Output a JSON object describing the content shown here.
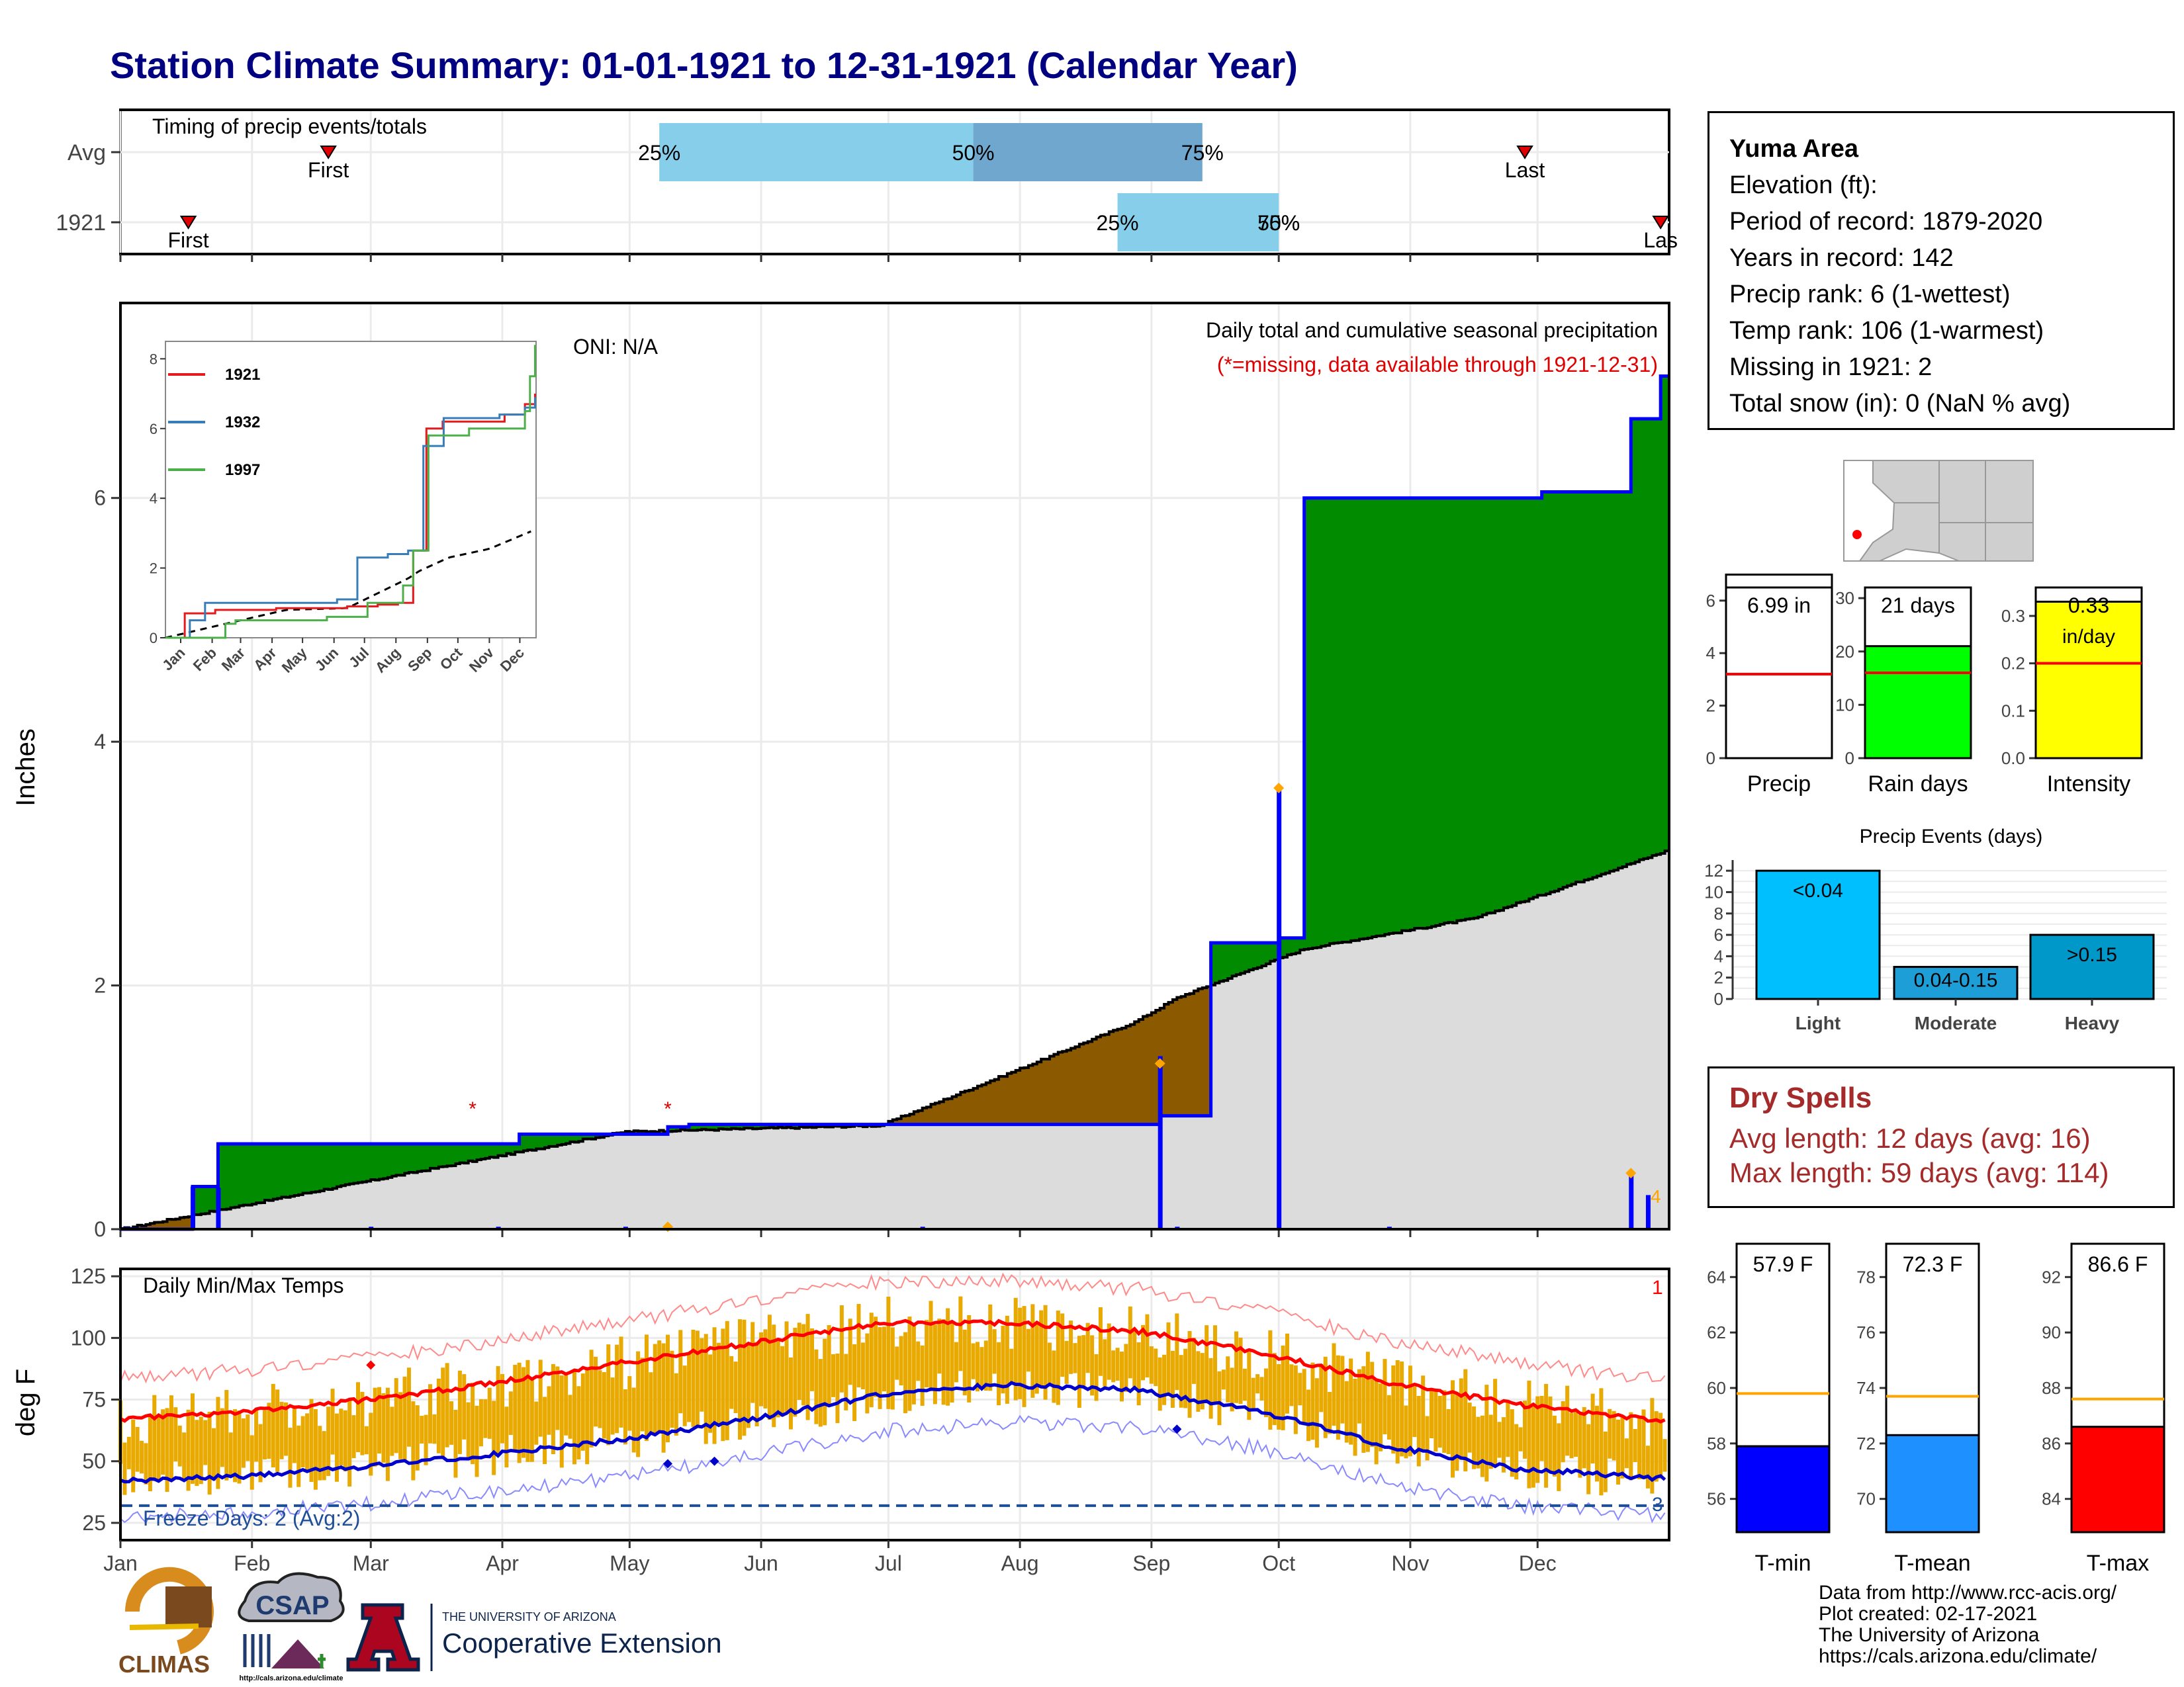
{
  "title": "Station Climate Summary: 01-01-1921 to 12-31-1921 (Calendar Year)",
  "months": [
    "Jan",
    "Feb",
    "Mar",
    "Apr",
    "May",
    "Jun",
    "Jul",
    "Aug",
    "Sep",
    "Oct",
    "Nov",
    "Dec"
  ],
  "timing": {
    "label": "Timing of precip events/totals",
    "rows": [
      "Avg",
      "1921"
    ],
    "first_label": "First",
    "last_label": "Last",
    "last_label_clipped": "Las",
    "pct_labels": [
      "25%",
      "50%",
      "75%"
    ],
    "pct_75_overlap_label": "75%",
    "avg": {
      "first_doy": 50,
      "q25_doy": 128,
      "q50_doy": 202,
      "q75_doy": 256,
      "last_doy": 332
    },
    "y1921": {
      "first_doy": 17,
      "q25_doy": 236,
      "q50_doy": 274,
      "q75_doy": 274,
      "last_doy": 364
    },
    "colors": {
      "light": "#87ceeb",
      "dark": "#6fa7cf",
      "marker": "#e00000"
    }
  },
  "precip_panel": {
    "title": "Daily total and cumulative seasonal precipitation",
    "subtitle": "(*=missing, data available through 1921-12-31)",
    "oni": "ONI: N/A",
    "ylabel": "Inches",
    "yticks": [
      "0",
      "2",
      "4",
      "6"
    ],
    "ylim": [
      0,
      7.6
    ],
    "missing_marker": "4",
    "colors": {
      "above": "#008b00",
      "below": "#8b5a00",
      "avg_fill": "#dcdcdc",
      "obs_line": "#0000ff",
      "daily": "#0000ff",
      "missing": "#e00000",
      "diamond": "#ffa500"
    }
  },
  "inset": {
    "yticks": [
      "0",
      "2",
      "4",
      "6",
      "8"
    ],
    "xticks": [
      "Jan",
      "Feb",
      "Mar",
      "Apr",
      "May",
      "Jun",
      "Jul",
      "Aug",
      "Sep",
      "Oct",
      "Nov",
      "Dec"
    ],
    "legend": [
      {
        "name": "1921",
        "color": "#e41a1c"
      },
      {
        "name": "1932",
        "color": "#377eb8"
      },
      {
        "name": "1997",
        "color": "#4daf4a"
      }
    ]
  },
  "temp_panel": {
    "title": "Daily Min/Max Temps",
    "ylabel": "deg F",
    "yticks": [
      "25",
      "50",
      "75",
      "100",
      "125"
    ],
    "ylim": [
      18,
      128
    ],
    "freeze": "Freeze Days: 2 (Avg:2)",
    "record_high_count": "1",
    "record_low_count": "3",
    "colors": {
      "bars": "#e8a900",
      "tmax": "#ff0000",
      "tmin": "#0000cd",
      "freeze": "#1f4e99"
    }
  },
  "station": {
    "name": "Yuma Area",
    "lines": [
      "Elevation (ft):",
      "Period of record: 1879-2020",
      "Years in record: 142",
      "Precip rank: 6 (1-wettest)",
      "Temp rank: 106 (1-warmest)",
      "Missing in 1921: 2",
      "Total snow (in): 0 (NaN % avg)"
    ]
  },
  "summary_bars": [
    {
      "label": "Precip",
      "value_label": "6.99 in",
      "value": 6.99,
      "avg": 3.2,
      "yticks": [
        "0",
        "2",
        "4",
        "6"
      ],
      "ymax": 6.5,
      "tickvals": [
        0,
        2,
        4,
        6
      ],
      "color": "#ffffff"
    },
    {
      "label": "Rain days",
      "value_label": "21 days",
      "value": 21,
      "avg": 16,
      "yticks": [
        "0",
        "10",
        "20",
        "30"
      ],
      "ymax": 32,
      "tickvals": [
        0,
        10,
        20,
        30
      ],
      "color": "#00ff00"
    },
    {
      "label": "Intensity",
      "value_label": "0.33",
      "value_label2": "in/day",
      "value": 0.33,
      "avg": 0.2,
      "yticks": [
        "0.0",
        "0.1",
        "0.2",
        "0.3"
      ],
      "ymax": 0.36,
      "tickvals": [
        0,
        0.1,
        0.2,
        0.3
      ],
      "color": "#ffff00"
    }
  ],
  "events": {
    "title": "Precip Events (days)",
    "categories": [
      "Light",
      "Moderate",
      "Heavy"
    ],
    "bar_labels": [
      "<0.04",
      "0.04-0.15",
      ">0.15"
    ],
    "values": [
      12,
      3,
      6
    ],
    "yticks": [
      "0",
      "2",
      "4",
      "6",
      "8",
      "10",
      "12"
    ],
    "colors": [
      "#00bfff",
      "#1e9ed6",
      "#0097c9"
    ]
  },
  "dry_spells": {
    "title": "Dry Spells",
    "avg_length": "Avg length: 12 days (avg: 16)",
    "max_length": "Max length: 59 days (avg: 114)"
  },
  "temp_bars": [
    {
      "label": "T-min",
      "value_label": "57.9 F",
      "value": 57.9,
      "avg": 59.8,
      "yticks": [
        "56",
        "58",
        "60",
        "62",
        "64"
      ],
      "tickvals": [
        56,
        58,
        60,
        62,
        64
      ],
      "ymin": 54.8,
      "ymax": 65.2,
      "color": "#0000ff"
    },
    {
      "label": "T-mean",
      "value_label": "72.3 F",
      "value": 72.3,
      "avg": 73.7,
      "yticks": [
        "70",
        "72",
        "74",
        "76",
        "78"
      ],
      "tickvals": [
        70,
        72,
        74,
        76,
        78
      ],
      "ymin": 68.8,
      "ymax": 79.2,
      "color": "#1e90ff"
    },
    {
      "label": "T-max",
      "value_label": "86.6 F",
      "value": 86.6,
      "avg": 87.6,
      "yticks": [
        "84",
        "86",
        "88",
        "90",
        "92"
      ],
      "tickvals": [
        84,
        86,
        88,
        90,
        92
      ],
      "ymin": 82.8,
      "ymax": 93.2,
      "color": "#ff0000"
    }
  ],
  "credits": [
    "Data from http://www.rcc-acis.org/",
    "Plot created: 02-17-2021",
    "The University of Arizona",
    "https://cals.arizona.edu/climate/"
  ],
  "logos": {
    "climas": "CLIMAS",
    "csap": "CSAP",
    "csap_url": "http://cals.arizona.edu/climate",
    "ua_line1": "THE UNIVERSITY OF ARIZONA",
    "ua_line2": "Cooperative Extension",
    "ua_letter": "A"
  },
  "chart_data": [
    {
      "type": "area",
      "title": "Daily total and cumulative seasonal precipitation",
      "ylabel": "Inches",
      "ylim": [
        0,
        7.6
      ],
      "series": [
        {
          "name": "1921 cumulative",
          "x_doy": [
            1,
            18,
            24,
            84,
            95,
            130,
            135,
            175,
            246,
            258,
            274,
            280,
            336,
            357,
            364
          ],
          "values": [
            0,
            0.35,
            0.7,
            0.7,
            0.78,
            0.84,
            0.86,
            0.86,
            0.93,
            2.35,
            2.39,
            6.0,
            6.05,
            6.65,
            7.0
          ]
        },
        {
          "name": "average cumulative",
          "x_doy": [
            1,
            60,
            120,
            180,
            240,
            250,
            280,
            320,
            365
          ],
          "values": [
            0,
            0.4,
            0.8,
            0.85,
            1.7,
            1.9,
            2.3,
            2.55,
            3.1
          ]
        }
      ],
      "daily_precip": [
        {
          "doy": 18,
          "inches": 0.35
        },
        {
          "doy": 24,
          "inches": 0.34
        },
        {
          "doy": 246,
          "inches": 1.42
        },
        {
          "doy": 274,
          "inches": 3.62
        },
        {
          "doy": 357,
          "inches": 0.45
        },
        {
          "doy": 361,
          "inches": 0.28
        }
      ]
    },
    {
      "type": "line",
      "title": "",
      "xlabel": "",
      "ylabel": "",
      "ylim": [
        0,
        8.5
      ],
      "series": [
        {
          "name": "1921",
          "x_doy": [
            1,
            20,
            50,
            110,
            180,
            210,
            230,
            245,
            258,
            274,
            335,
            355,
            365
          ],
          "values": [
            0,
            0.7,
            0.8,
            0.85,
            0.9,
            0.95,
            1.0,
            2.5,
            6.0,
            6.2,
            6.4,
            6.7,
            7.0
          ]
        },
        {
          "name": "1932",
          "x_doy": [
            1,
            25,
            40,
            170,
            190,
            220,
            240,
            255,
            275,
            330,
            355,
            365
          ],
          "values": [
            0,
            0.5,
            1.0,
            1.1,
            2.3,
            2.4,
            2.5,
            5.5,
            6.3,
            6.4,
            6.6,
            6.9
          ]
        },
        {
          "name": "1997",
          "x_doy": [
            1,
            60,
            70,
            160,
            200,
            235,
            245,
            260,
            300,
            355,
            360,
            365
          ],
          "values": [
            0,
            0.4,
            0.5,
            0.6,
            1.0,
            1.5,
            2.5,
            5.8,
            6.0,
            6.5,
            7.5,
            8.4
          ]
        }
      ]
    },
    {
      "type": "line",
      "title": "Daily Min/Max Temps",
      "ylabel": "deg F",
      "ylim": [
        18,
        128
      ],
      "series": [
        {
          "name": "avg max",
          "x_doy": [
            1,
            30,
            60,
            90,
            120,
            150,
            180,
            210,
            240,
            270,
            300,
            330,
            365
          ],
          "values": [
            67,
            70,
            75,
            82,
            90,
            98,
            106,
            106,
            103,
            94,
            82,
            73,
            66
          ]
        },
        {
          "name": "avg min",
          "x_doy": [
            1,
            30,
            60,
            90,
            120,
            150,
            180,
            210,
            240,
            270,
            300,
            330,
            365
          ],
          "values": [
            42,
            44,
            48,
            53,
            59,
            67,
            77,
            81,
            79,
            70,
            56,
            47,
            43
          ]
        }
      ]
    }
  ]
}
